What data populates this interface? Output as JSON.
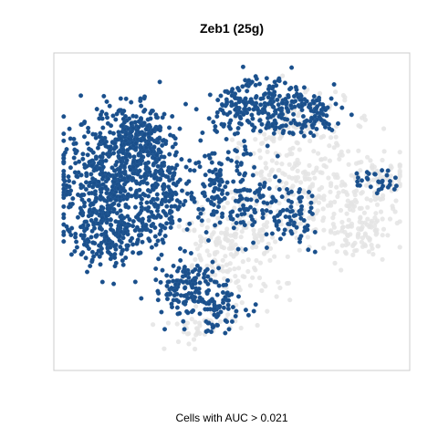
{
  "chart_data": {
    "type": "scatter",
    "title": "Zeb1 (25g)",
    "subtitle": "",
    "xlabel": "",
    "ylabel": "",
    "caption": "Cells with AUC > 0.021",
    "auc_threshold": 0.021,
    "xlim": [
      0,
      100
    ],
    "ylim": [
      0,
      100
    ],
    "grid": false,
    "legend": "none",
    "colors": {
      "above_threshold": "#1a4f8b",
      "below_threshold": "#e4e4e4",
      "frame": "#cccccc"
    },
    "series": [
      {
        "group": "below_threshold",
        "regions": [
          {
            "cx": 72,
            "cy": 58,
            "sx": 11,
            "sy": 10,
            "n": 260
          },
          {
            "cx": 87,
            "cy": 45,
            "sx": 5,
            "sy": 6,
            "n": 110
          },
          {
            "cx": 93,
            "cy": 62,
            "sx": 5,
            "sy": 3,
            "n": 50
          },
          {
            "cx": 68,
            "cy": 80,
            "sx": 8,
            "sy": 5,
            "n": 90
          },
          {
            "cx": 50,
            "cy": 42,
            "sx": 6,
            "sy": 5,
            "n": 110
          },
          {
            "cx": 48,
            "cy": 28,
            "sx": 9,
            "sy": 6,
            "n": 90
          },
          {
            "cx": 40,
            "cy": 12,
            "sx": 6,
            "sy": 3,
            "n": 40
          }
        ]
      },
      {
        "group": "above_threshold",
        "regions": [
          {
            "cx": 15,
            "cy": 60,
            "sx": 8,
            "sy": 10,
            "n": 520
          },
          {
            "cx": 23,
            "cy": 73,
            "sx": 5,
            "sy": 6,
            "n": 260
          },
          {
            "cx": 15,
            "cy": 42,
            "sx": 6,
            "sy": 5,
            "n": 160
          },
          {
            "cx": 30,
            "cy": 55,
            "sx": 4,
            "sy": 7,
            "n": 140
          },
          {
            "cx": 60,
            "cy": 86,
            "sx": 6,
            "sy": 5,
            "n": 160
          },
          {
            "cx": 72,
            "cy": 82,
            "sx": 5,
            "sy": 4,
            "n": 90
          },
          {
            "cx": 52,
            "cy": 84,
            "sx": 3,
            "sy": 5,
            "n": 60
          },
          {
            "cx": 46,
            "cy": 60,
            "sx": 4,
            "sy": 8,
            "n": 120
          },
          {
            "cx": 56,
            "cy": 52,
            "sx": 5,
            "sy": 6,
            "n": 80
          },
          {
            "cx": 37,
            "cy": 25,
            "sx": 5,
            "sy": 5,
            "n": 140
          },
          {
            "cx": 46,
            "cy": 18,
            "sx": 4,
            "sy": 4,
            "n": 70
          },
          {
            "cx": 68,
            "cy": 48,
            "sx": 4,
            "sy": 5,
            "n": 60
          },
          {
            "cx": 92,
            "cy": 60,
            "sx": 3,
            "sy": 2,
            "n": 30
          }
        ]
      }
    ]
  }
}
